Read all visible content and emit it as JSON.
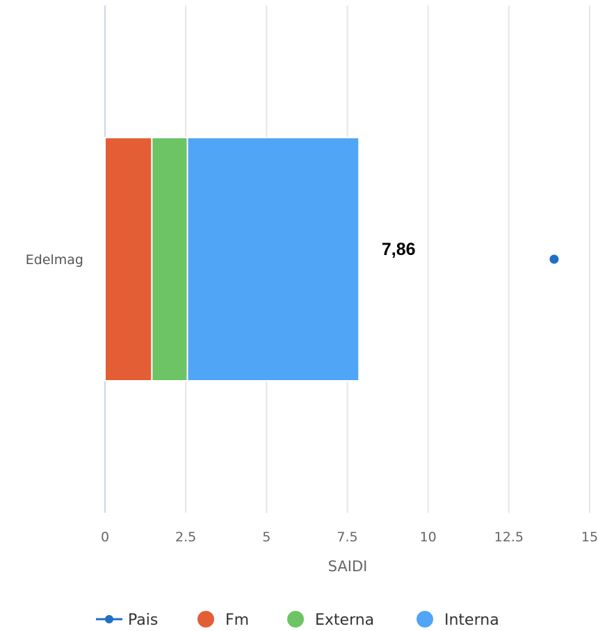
{
  "chart_data": {
    "type": "bar",
    "orientation": "horizontal",
    "stacked": true,
    "categories": [
      "Edelmag"
    ],
    "xlabel": "SAIDI",
    "xlim": [
      0,
      15
    ],
    "xticks": [
      0,
      2.5,
      5,
      7.5,
      10,
      12.5,
      15
    ],
    "xtick_labels": [
      "0",
      "2.5",
      "5",
      "7.5",
      "10",
      "12.5",
      "15"
    ],
    "grid": true,
    "series": [
      {
        "name": "Fm",
        "values": [
          1.45
        ],
        "color": "#E45E35"
      },
      {
        "name": "Externa",
        "values": [
          1.1
        ],
        "color": "#6CC465"
      },
      {
        "name": "Interna",
        "values": [
          5.31
        ],
        "color": "#50A5F6"
      }
    ],
    "stack_total_label": "7,86",
    "point_series": {
      "name": "Pais",
      "type": "line-marker",
      "values": [
        13.9
      ],
      "color": "#1F6FC6"
    },
    "legend": {
      "position": "bottom",
      "items": [
        {
          "name": "Pais",
          "symbol": "line-marker",
          "color": "#1F6FC6"
        },
        {
          "name": "Fm",
          "symbol": "circle",
          "color": "#E45E35"
        },
        {
          "name": "Externa",
          "symbol": "circle",
          "color": "#6CC465"
        },
        {
          "name": "Interna",
          "symbol": "circle",
          "color": "#50A5F6"
        }
      ]
    }
  }
}
